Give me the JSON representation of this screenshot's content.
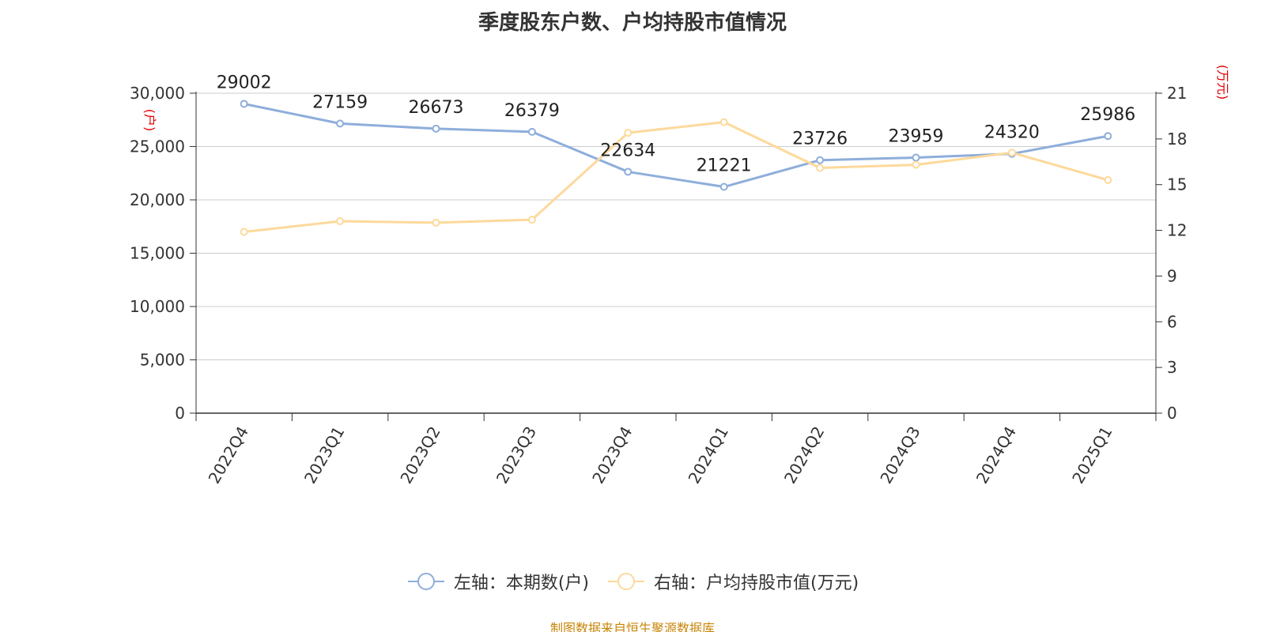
{
  "title": "季度股东户数、户均持股市值情况",
  "source": "制图数据来自恒生聚源数据库",
  "colors": {
    "left_series": "#8eaedb",
    "right_series": "#fdd99b",
    "unit_label": "#e00000",
    "source_text": "#c8860a",
    "grid": "#cccccc",
    "axis": "#333333"
  },
  "legend": {
    "left": "左轴：本期数(户)",
    "right": "右轴：户均持股市值(万元)"
  },
  "chart_data": {
    "type": "line",
    "categories": [
      "2022Q4",
      "2023Q1",
      "2023Q2",
      "2023Q3",
      "2023Q4",
      "2024Q1",
      "2024Q2",
      "2024Q3",
      "2024Q4",
      "2025Q1"
    ],
    "left_axis": {
      "unit": "户",
      "ylim": [
        0,
        30000
      ],
      "ticks": [
        "0",
        "5,000",
        "10,000",
        "15,000",
        "20,000",
        "25,000",
        "30,000"
      ]
    },
    "right_axis": {
      "unit": "万元",
      "ylim": [
        0,
        21
      ],
      "ticks": [
        "0",
        "3",
        "6",
        "9",
        "12",
        "15",
        "18",
        "21"
      ]
    },
    "grid": true,
    "legend_position": "bottom",
    "series": [
      {
        "name": "左轴：本期数(户)",
        "axis": "left",
        "values": [
          29002,
          27159,
          26673,
          26379,
          22634,
          21221,
          23726,
          23959,
          24320,
          25986
        ],
        "labels": [
          "29002",
          "27159",
          "26673",
          "26379",
          "22634",
          "21221",
          "23726",
          "23959",
          "24320",
          "25986"
        ]
      },
      {
        "name": "右轴：户均持股市值(万元)",
        "axis": "right",
        "values": [
          11.9,
          12.6,
          12.5,
          12.7,
          18.4,
          19.1,
          16.1,
          16.3,
          17.1,
          15.3
        ]
      }
    ]
  }
}
